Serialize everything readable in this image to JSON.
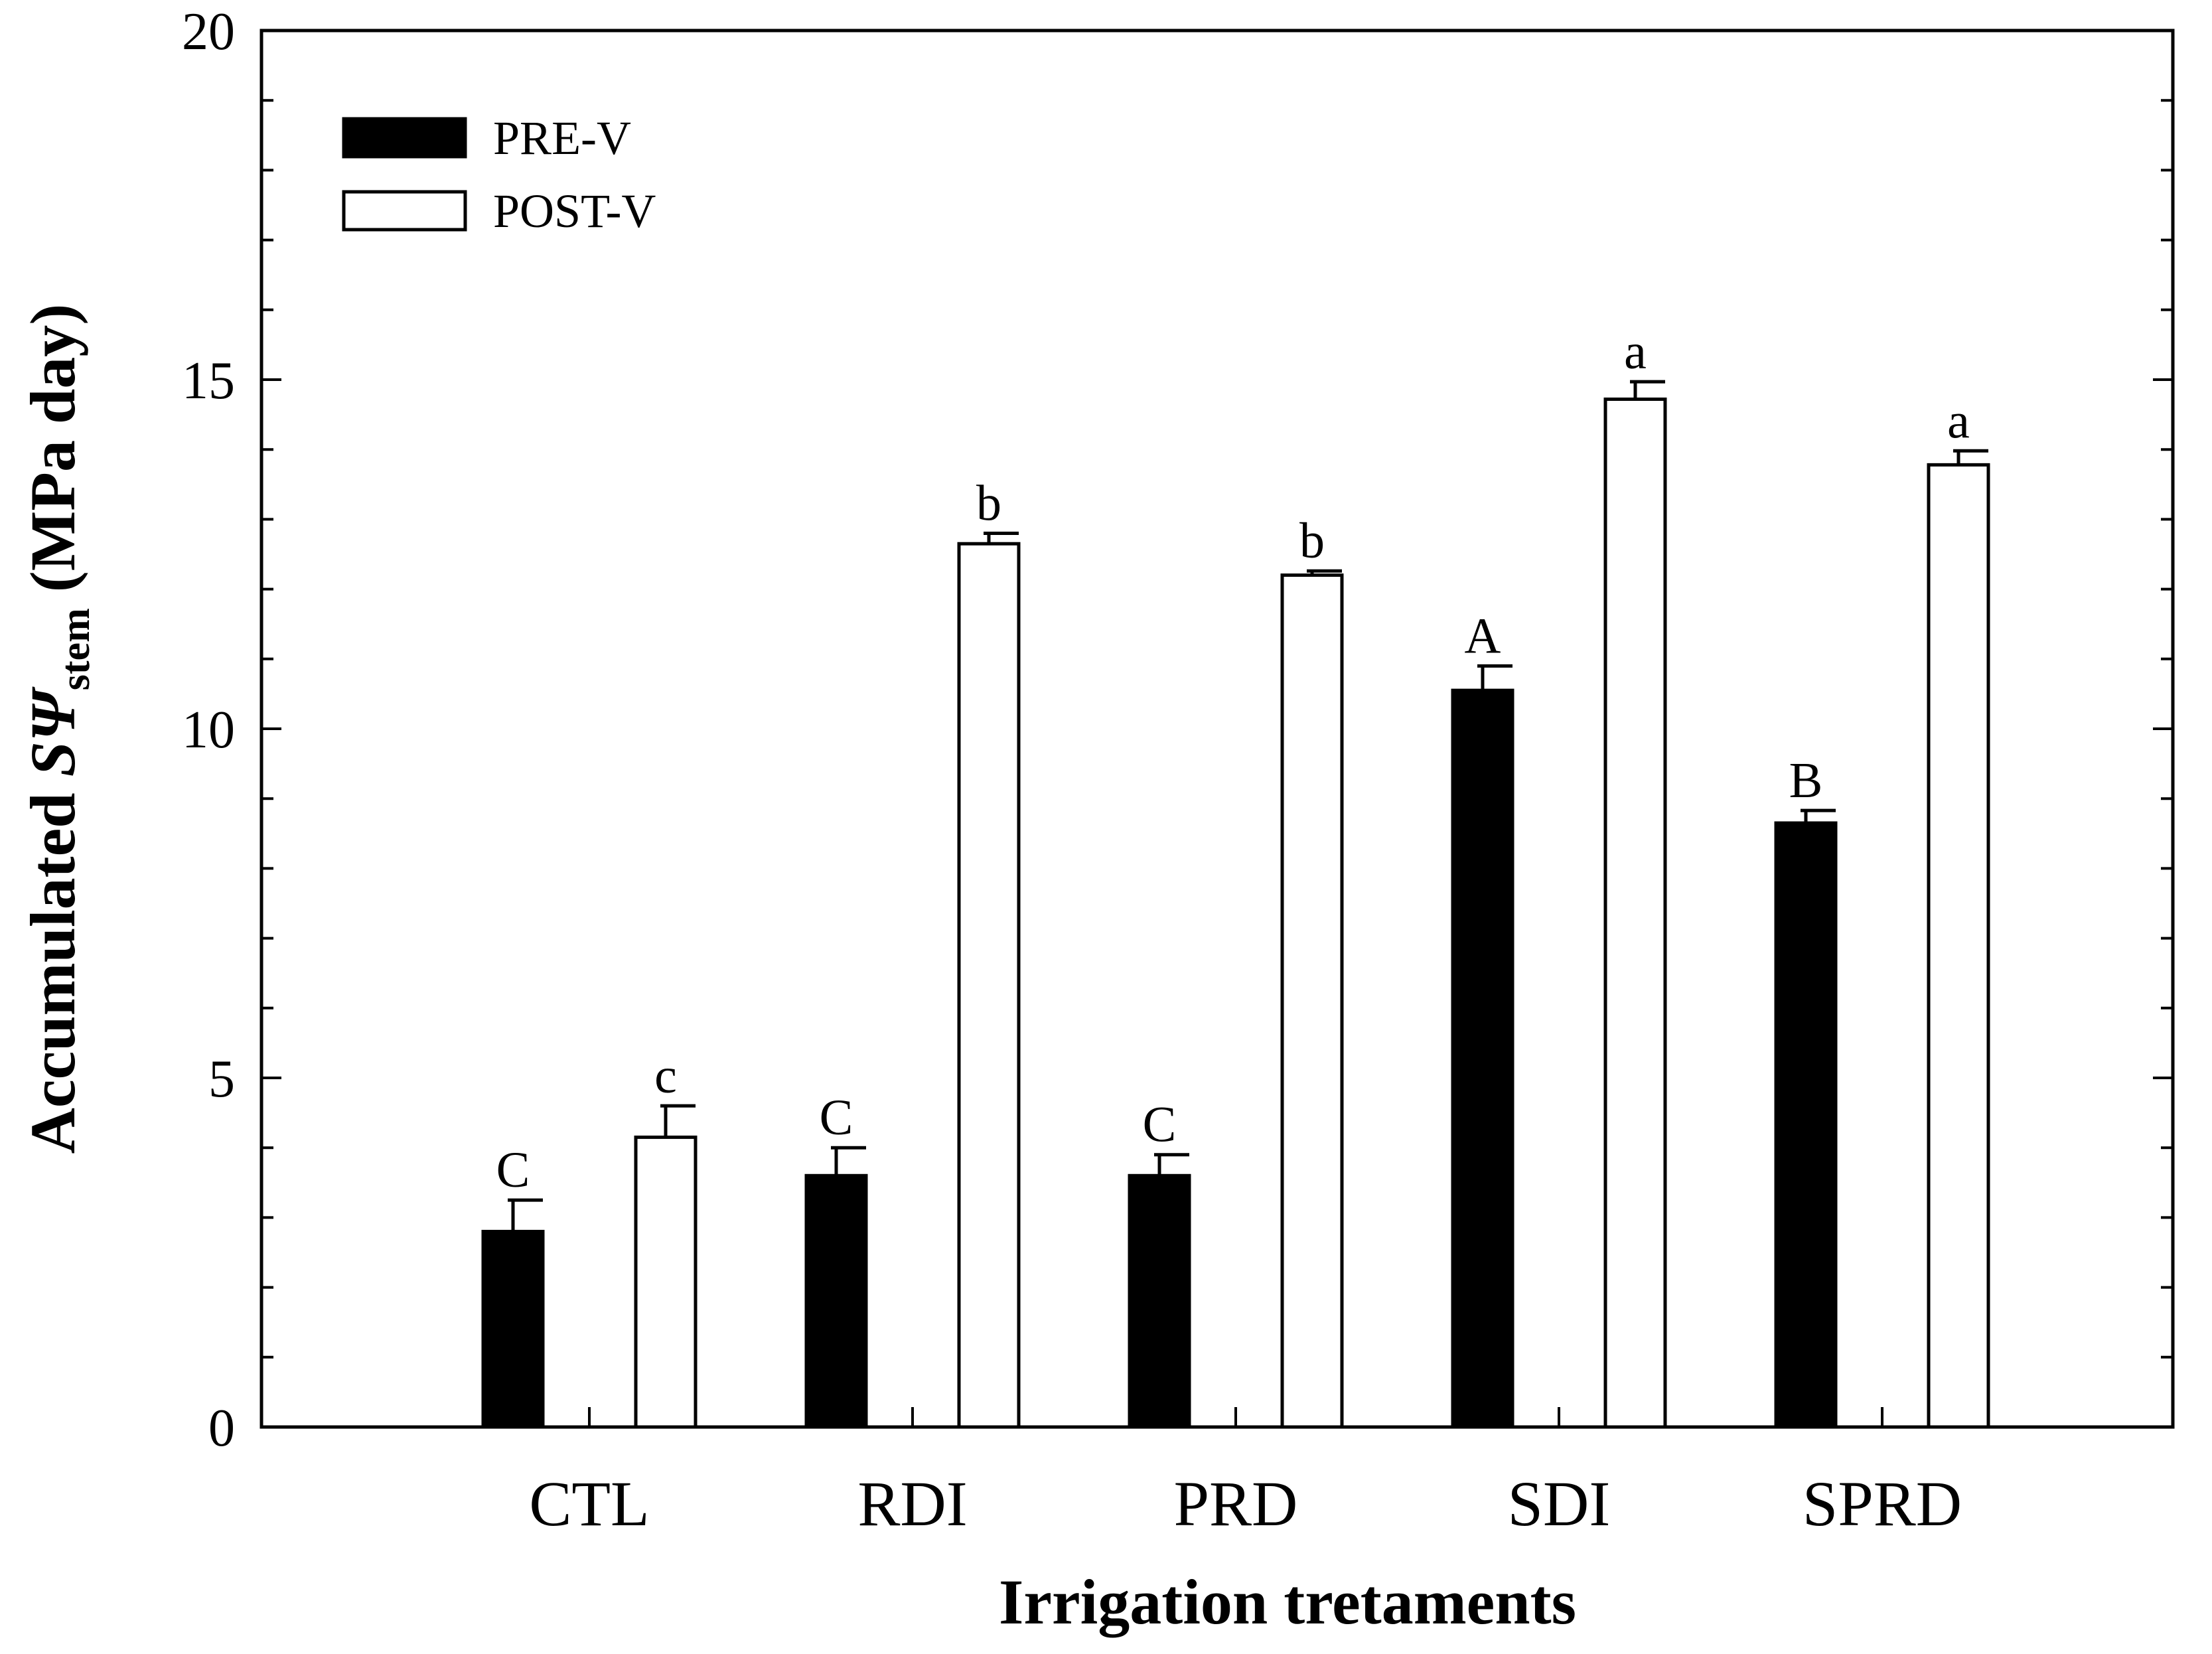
{
  "chart_data": {
    "type": "bar",
    "categories": [
      "CTL",
      "RDI",
      "PRD",
      "SDI",
      "SPRD"
    ],
    "series": [
      {
        "name": "PRE-V",
        "color": "#000000",
        "values": [
          2.8,
          3.6,
          3.6,
          10.55,
          8.65
        ],
        "errors": [
          0.45,
          0.4,
          0.3,
          0.35,
          0.18
        ],
        "significance": [
          "C",
          "C",
          "C",
          "A",
          "B"
        ]
      },
      {
        "name": "POST-V",
        "color": "#ffffff",
        "values": [
          4.15,
          12.65,
          12.2,
          14.72,
          13.78
        ],
        "errors": [
          0.45,
          0.15,
          0.06,
          0.25,
          0.2
        ],
        "significance": [
          "c",
          "b",
          "b",
          "a",
          "a"
        ]
      }
    ],
    "xlabel": "Irrigation tretaments",
    "ylabel": {
      "prefix": "Accumulated ",
      "symbol": "SΨ",
      "subscript": "stem",
      "suffix": " (MPa day)"
    },
    "ylim": [
      0,
      20
    ],
    "yticks": [
      "0",
      "5",
      "10",
      "15",
      "20"
    ],
    "grid": false,
    "legend_position": "top-left"
  }
}
